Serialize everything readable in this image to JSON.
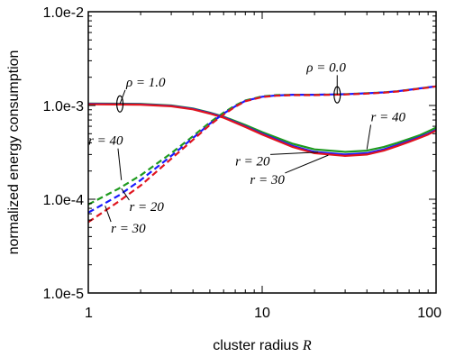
{
  "chart_data": {
    "type": "line",
    "xlabel": "cluster radius",
    "xlabel_var": "R",
    "ylabel": "normalized energy consumption",
    "x_scale": "log",
    "y_scale": "log",
    "xlim": [
      1,
      100
    ],
    "ylim": [
      1e-05,
      0.01
    ],
    "x_ticks": [
      {
        "value": 1,
        "label": "1"
      },
      {
        "value": 10,
        "label": "10"
      },
      {
        "value": 100,
        "label": "100"
      }
    ],
    "y_ticks": [
      {
        "value": 1e-05,
        "label": "1.0e-5"
      },
      {
        "value": 0.0001,
        "label": "1.0e-4"
      },
      {
        "value": 0.001,
        "label": "1.0e-3"
      },
      {
        "value": 0.01,
        "label": "1.0e-2"
      }
    ],
    "grid": false,
    "legend": "none",
    "colors": {
      "r20": "#1a1aff",
      "r30": "#e0141e",
      "r40": "#1e9a1e"
    },
    "series": [
      {
        "name": "r = 40",
        "rho": "ρ = 1.0",
        "color": "#1e9a1e",
        "dash": false,
        "x": [
          1,
          2,
          3,
          4,
          5,
          6,
          8,
          10,
          15,
          20,
          30,
          40,
          50,
          60,
          70,
          80,
          90,
          100
        ],
        "y": [
          0.00105,
          0.00104,
          0.001,
          0.00093,
          0.00084,
          0.00076,
          0.00062,
          0.00052,
          0.00039,
          0.00034,
          0.00032,
          0.00033,
          0.00036,
          0.0004,
          0.00044,
          0.00048,
          0.00053,
          0.00058
        ]
      },
      {
        "name": "r = 20",
        "rho": "ρ = 1.0",
        "color": "#1a1aff",
        "dash": false,
        "x": [
          1,
          2,
          3,
          4,
          5,
          6,
          8,
          10,
          15,
          20,
          30,
          40,
          50,
          60,
          70,
          80,
          90,
          100
        ],
        "y": [
          0.00104,
          0.00103,
          0.00099,
          0.00092,
          0.00083,
          0.00075,
          0.0006,
          0.0005,
          0.00037,
          0.00032,
          0.0003,
          0.00031,
          0.00034,
          0.00038,
          0.00042,
          0.00046,
          0.0005,
          0.00055
        ]
      },
      {
        "name": "r = 30",
        "rho": "ρ = 1.0",
        "color": "#e0141e",
        "dash": false,
        "x": [
          1,
          2,
          3,
          4,
          5,
          6,
          8,
          10,
          15,
          20,
          30,
          40,
          50,
          60,
          70,
          80,
          90,
          100
        ],
        "y": [
          0.00103,
          0.00102,
          0.00098,
          0.00091,
          0.00082,
          0.00074,
          0.00059,
          0.00049,
          0.00036,
          0.00031,
          0.00029,
          0.0003,
          0.00033,
          0.00037,
          0.00041,
          0.00045,
          0.00049,
          0.00054
        ]
      },
      {
        "name": "r = 40",
        "rho": "ρ = 0.0",
        "color": "#1e9a1e",
        "dash": true,
        "x": [
          1,
          1.5,
          2,
          3,
          4,
          5,
          6,
          7,
          8,
          10,
          12,
          15,
          20,
          30,
          40,
          50,
          60,
          70,
          80,
          90,
          100
        ],
        "y": [
          8.8e-05,
          0.00013,
          0.00018,
          0.00031,
          0.00047,
          0.00066,
          0.00084,
          0.001,
          0.00113,
          0.00125,
          0.00129,
          0.0013,
          0.0013,
          0.00132,
          0.00135,
          0.00138,
          0.00142,
          0.00147,
          0.00152,
          0.00156,
          0.0016
        ]
      },
      {
        "name": "r = 20",
        "rho": "ρ = 0.0",
        "color": "#1a1aff",
        "dash": true,
        "x": [
          1,
          1.5,
          2,
          3,
          4,
          5,
          6,
          7,
          8,
          10,
          12,
          15,
          20,
          30,
          40,
          50,
          60,
          70,
          80,
          90,
          100
        ],
        "y": [
          7.2e-05,
          0.00011,
          0.00016,
          0.00029,
          0.00045,
          0.00064,
          0.00082,
          0.00098,
          0.00112,
          0.00124,
          0.00128,
          0.0013,
          0.0013,
          0.00132,
          0.00135,
          0.00138,
          0.00142,
          0.00147,
          0.00152,
          0.00156,
          0.0016
        ]
      },
      {
        "name": "r = 30",
        "rho": "ρ = 0.0",
        "color": "#e0141e",
        "dash": true,
        "x": [
          1,
          1.5,
          2,
          3,
          4,
          5,
          6,
          7,
          8,
          10,
          12,
          15,
          20,
          30,
          40,
          50,
          60,
          70,
          80,
          90,
          100
        ],
        "y": [
          5.7e-05,
          9.5e-05,
          0.00014,
          0.00027,
          0.00043,
          0.00062,
          0.0008,
          0.00097,
          0.00111,
          0.00123,
          0.00127,
          0.00129,
          0.00129,
          0.00131,
          0.00134,
          0.00137,
          0.00141,
          0.00146,
          0.00151,
          0.00155,
          0.0016
        ]
      }
    ],
    "annotations": [
      {
        "text": "ρ = 1.0",
        "x": 1.65,
        "y": 0.0016,
        "ex": 1.52,
        "ey": 0.00104,
        "anchor": "start"
      },
      {
        "text": "ρ = 0.0",
        "x": 18,
        "y": 0.0023,
        "ex": 27,
        "ey": 0.0013,
        "anchor": "start"
      },
      {
        "text": "r = 40",
        "x": 1.0,
        "y": 0.00038,
        "ex": 1.55,
        "ey": 0.00016,
        "anchor": "start"
      },
      {
        "text": "r = 20",
        "x": 1.72,
        "y": 7.5e-05,
        "ex": 1.55,
        "ey": 0.00013,
        "anchor": "start"
      },
      {
        "text": "r = 30",
        "x": 1.35,
        "y": 4.4e-05,
        "ex": 1.25,
        "ey": 8.5e-05,
        "anchor": "start"
      },
      {
        "text": "r = 40",
        "x": 53,
        "y": 0.00068,
        "ex": 40,
        "ey": 0.00034,
        "anchor": "middle"
      },
      {
        "text": "r = 20",
        "x": 7,
        "y": 0.00023,
        "ex": 21,
        "ey": 0.000318,
        "anchor": "start"
      },
      {
        "text": "r = 30",
        "x": 8.5,
        "y": 0.000146,
        "ex": 24,
        "ey": 0.000295,
        "anchor": "start"
      }
    ],
    "ellipses": [
      {
        "x": 1.52,
        "y": 0.00104
      },
      {
        "x": 27,
        "y": 0.0013
      }
    ]
  }
}
